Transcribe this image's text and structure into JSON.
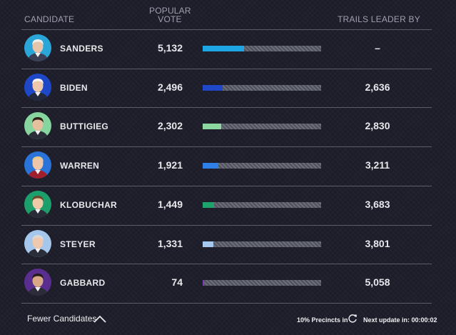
{
  "header": {
    "candidate": "CANDIDATE",
    "popular_vote_line1": "POPULAR",
    "popular_vote_line2": "VOTE",
    "trails": "TRAILS LEADER BY"
  },
  "rows": [
    {
      "name": "SANDERS",
      "votes": "5,132",
      "trails": "–",
      "share": 0.348,
      "color": "#1ea6e4",
      "bg": "#2ba6d9",
      "skin": "#e8c4aa",
      "hair": "#eeeeee",
      "suit": "#3a3f55"
    },
    {
      "name": "BIDEN",
      "votes": "2,496",
      "trails": "2,636",
      "share": 0.169,
      "color": "#1f48c8",
      "bg": "#1f48c8",
      "skin": "#efc8ab",
      "hair": "#f4f4f4",
      "suit": "#23283d"
    },
    {
      "name": "BUTTIGIEG",
      "votes": "2,302",
      "trails": "2,830",
      "share": 0.156,
      "color": "#8ad8a0",
      "bg": "#86d49e",
      "skin": "#e6bf9f",
      "hair": "#2b2116",
      "suit": "#2a2d38"
    },
    {
      "name": "WARREN",
      "votes": "1,921",
      "trails": "3,211",
      "share": 0.13,
      "color": "#2f7fe8",
      "bg": "#2a73d9",
      "skin": "#edc6aa",
      "hair": "#e3c98c",
      "suit": "#a01f2c"
    },
    {
      "name": "KLOBUCHAR",
      "votes": "1,449",
      "trails": "3,683",
      "share": 0.098,
      "color": "#1ea36e",
      "bg": "#1d9f6b",
      "skin": "#efcaa8",
      "hair": "#6b4b2c",
      "suit": "#2a2d38"
    },
    {
      "name": "STEYER",
      "votes": "1,331",
      "trails": "3,801",
      "share": 0.09,
      "color": "#a4c8f0",
      "bg": "#a5c7ec",
      "skin": "#efc9ad",
      "hair": "#d9d9d9",
      "suit": "#2a2d3a"
    },
    {
      "name": "GABBARD",
      "votes": "74",
      "trails": "5,058",
      "share": 0.005,
      "color": "#7a3fb5",
      "bg": "#5a2e8f",
      "skin": "#d9a886",
      "hair": "#221a17",
      "suit": "#2a2d38"
    }
  ],
  "footer": {
    "toggle_label": "Fewer Candidates",
    "precincts": "10% Precincts in",
    "next_update": "Next update in: 00:00:02"
  },
  "icons": {
    "toggle": "chevron-up-icon",
    "refresh": "refresh-icon"
  }
}
